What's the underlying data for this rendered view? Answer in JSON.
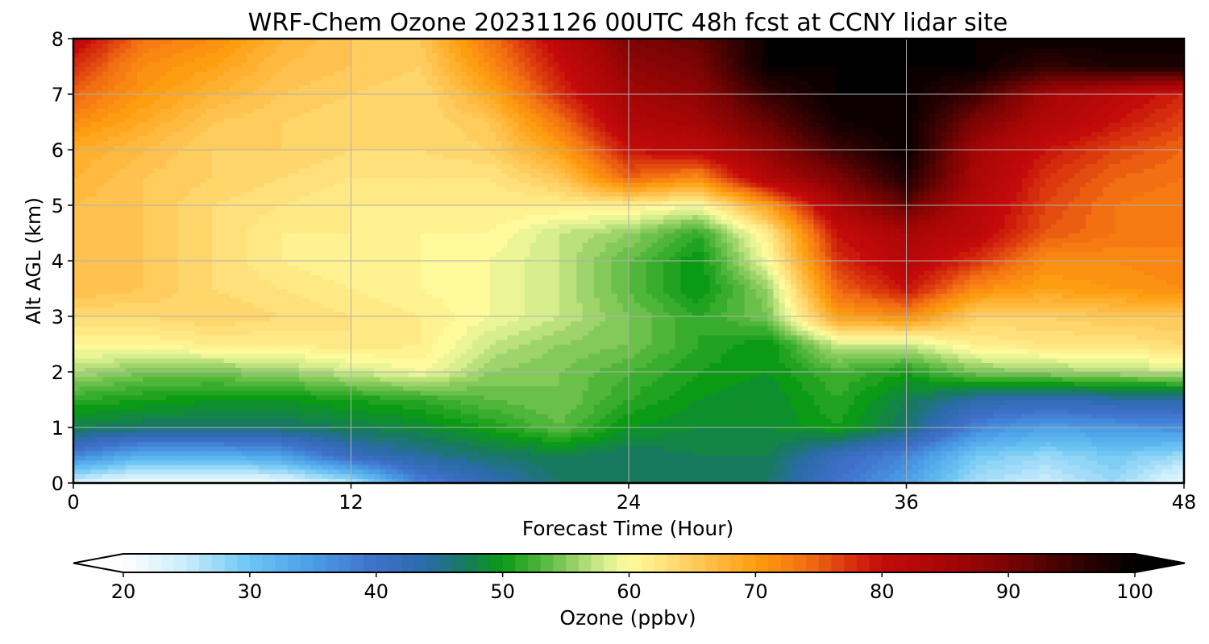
{
  "chart_data": {
    "type": "heatmap",
    "title": "WRF-Chem Ozone  20231126 00UTC 48h fcst at CCNY lidar site",
    "xlabel": "Forecast Time (Hour)",
    "ylabel": "Alt AGL (km)",
    "xlim": [
      0,
      48
    ],
    "ylim": [
      0,
      8
    ],
    "x_ticks": [
      "0",
      "12",
      "24",
      "36",
      "48"
    ],
    "y_ticks": [
      "0",
      "1",
      "2",
      "3",
      "4",
      "5",
      "6",
      "7",
      "8"
    ],
    "grid": true,
    "colorbar": {
      "label": "Ozone  (ppbv)",
      "orientation": "horizontal",
      "position": "bottom",
      "min": 20,
      "max": 100,
      "extend": "both",
      "ticks": [
        "20",
        "30",
        "40",
        "50",
        "60",
        "70",
        "80",
        "90",
        "100"
      ],
      "stops": [
        {
          "v": 20,
          "c": "#ffffff"
        },
        {
          "v": 25,
          "c": "#c8ecfb"
        },
        {
          "v": 30,
          "c": "#6cc5f4"
        },
        {
          "v": 35,
          "c": "#4a9de6"
        },
        {
          "v": 40,
          "c": "#3f6fc9"
        },
        {
          "v": 44,
          "c": "#2a6ba8"
        },
        {
          "v": 47,
          "c": "#177a5e"
        },
        {
          "v": 50,
          "c": "#0a9a14"
        },
        {
          "v": 53,
          "c": "#4fb63a"
        },
        {
          "v": 56,
          "c": "#9fd46c"
        },
        {
          "v": 58,
          "c": "#d6ee8e"
        },
        {
          "v": 60,
          "c": "#fffb9c"
        },
        {
          "v": 63,
          "c": "#ffe07a"
        },
        {
          "v": 66,
          "c": "#ffc24e"
        },
        {
          "v": 70,
          "c": "#ff9d10"
        },
        {
          "v": 74,
          "c": "#f27012"
        },
        {
          "v": 77,
          "c": "#dc3a0e"
        },
        {
          "v": 80,
          "c": "#c40a0a"
        },
        {
          "v": 85,
          "c": "#a80606"
        },
        {
          "v": 90,
          "c": "#7a0404"
        },
        {
          "v": 95,
          "c": "#3a0202"
        },
        {
          "v": 100,
          "c": "#000000"
        }
      ]
    },
    "levels_km": [
      0,
      0.5,
      1,
      1.5,
      2,
      2.5,
      3,
      3.5,
      4,
      4.5,
      5,
      5.5,
      6,
      6.5,
      7,
      7.5,
      8
    ],
    "hours": [
      0,
      3,
      6,
      9,
      12,
      15,
      18,
      21,
      24,
      27,
      30,
      33,
      36,
      39,
      42,
      45,
      48
    ],
    "z_ppbv": [
      [
        24,
        21,
        21,
        22,
        26,
        38,
        43,
        47,
        47,
        48,
        47,
        40,
        35,
        27,
        25,
        28,
        22
      ],
      [
        38,
        33,
        33,
        35,
        42,
        45,
        47,
        48,
        47,
        48,
        48,
        42,
        38,
        30,
        28,
        30,
        28
      ],
      [
        48,
        47,
        47,
        47,
        48,
        49,
        51,
        54,
        50,
        49,
        49,
        51,
        47,
        38,
        35,
        36,
        37
      ],
      [
        52,
        51,
        50,
        50,
        51,
        52,
        54,
        55,
        52,
        50,
        49,
        52,
        48,
        44,
        43,
        44,
        44
      ],
      [
        57,
        55,
        55,
        56,
        58,
        60,
        56,
        55,
        53,
        51,
        50,
        53,
        51,
        55,
        56,
        57,
        58
      ],
      [
        61,
        61,
        62,
        62,
        63,
        62,
        58,
        56,
        55,
        52,
        50,
        58,
        58,
        62,
        63,
        63,
        64
      ],
      [
        64,
        64,
        65,
        64,
        63,
        62,
        60,
        58,
        55,
        52,
        55,
        70,
        72,
        65,
        65,
        66,
        66
      ],
      [
        67,
        66,
        64,
        63,
        62,
        61,
        60,
        58,
        54,
        50,
        56,
        75,
        80,
        72,
        70,
        71,
        72
      ],
      [
        67,
        66,
        64,
        62,
        61,
        61,
        60,
        58,
        54,
        50,
        60,
        78,
        83,
        78,
        72,
        72,
        73
      ],
      [
        67,
        66,
        64,
        62,
        62,
        61,
        61,
        58,
        56,
        52,
        62,
        80,
        85,
        82,
        76,
        74,
        73
      ],
      [
        67,
        66,
        64,
        63,
        62,
        62,
        62,
        62,
        62,
        60,
        70,
        85,
        92,
        83,
        77,
        74,
        73
      ],
      [
        68,
        66,
        65,
        64,
        63,
        63,
        63,
        66,
        75,
        72,
        84,
        90,
        98,
        85,
        78,
        75,
        74
      ],
      [
        69,
        67,
        65,
        65,
        64,
        64,
        65,
        70,
        80,
        82,
        88,
        95,
        100,
        86,
        80,
        77,
        75
      ],
      [
        72,
        69,
        66,
        65,
        64,
        64,
        66,
        74,
        84,
        86,
        92,
        99,
        100,
        90,
        84,
        80,
        77
      ],
      [
        75,
        71,
        68,
        66,
        65,
        64,
        69,
        78,
        86,
        88,
        96,
        100,
        100,
        95,
        86,
        82,
        79
      ],
      [
        78,
        72,
        70,
        67,
        66,
        65,
        72,
        80,
        88,
        90,
        100,
        100,
        100,
        100,
        96,
        98,
        98
      ],
      [
        82,
        74,
        72,
        68,
        66,
        66,
        74,
        82,
        90,
        92,
        100,
        100,
        100,
        100,
        100,
        100,
        100
      ]
    ]
  }
}
